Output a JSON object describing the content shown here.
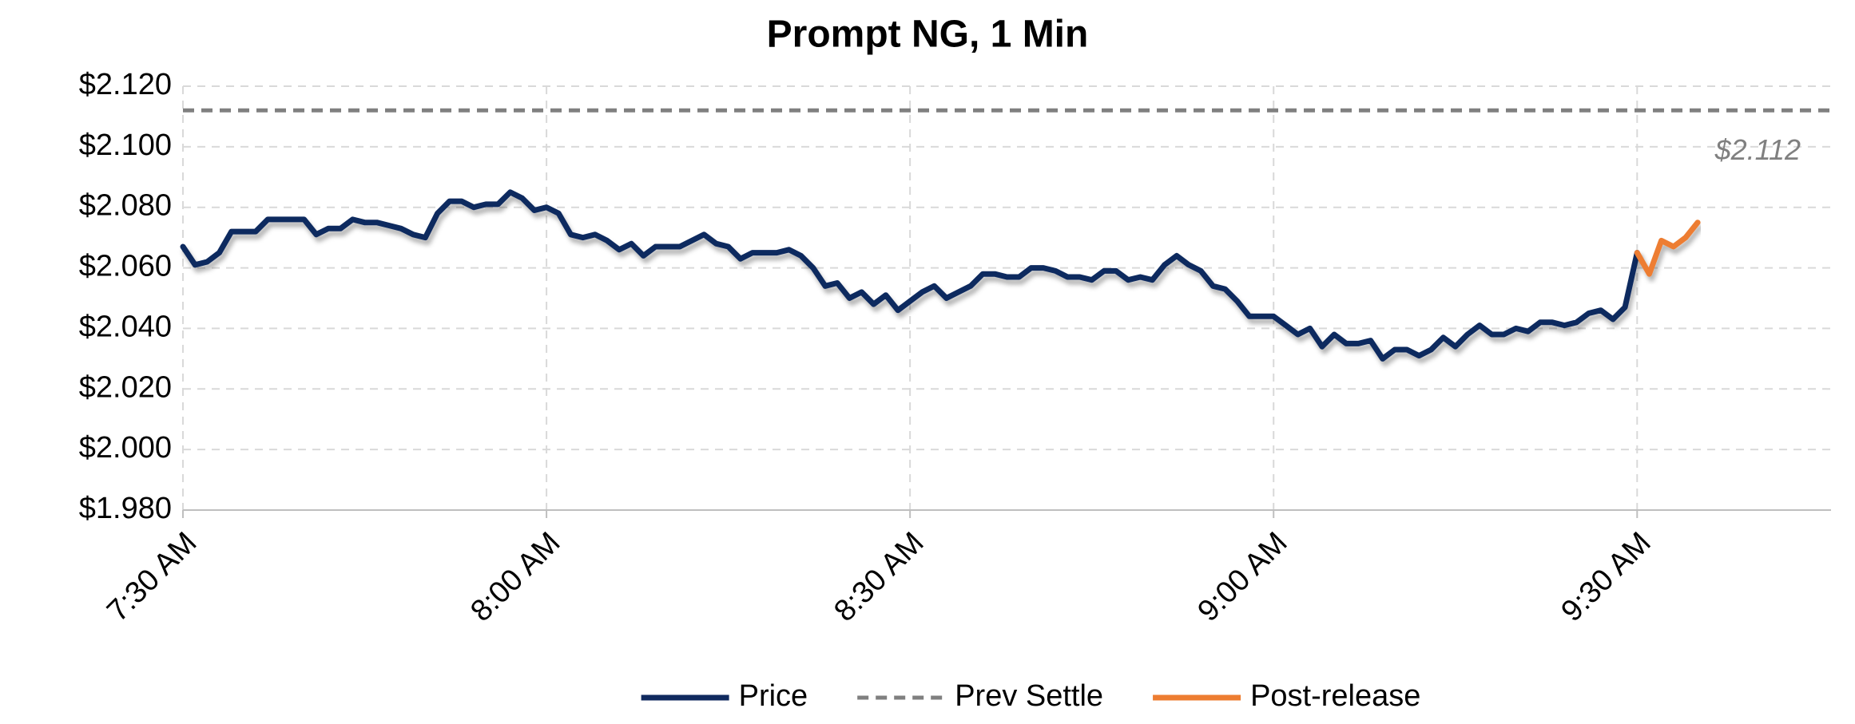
{
  "chart_data": {
    "type": "line",
    "title": "Prompt NG, 1 Min",
    "xlim": [
      450,
      586
    ],
    "xticks": [
      {
        "value": 450,
        "label": "7:30 AM"
      },
      {
        "value": 480,
        "label": "8:00 AM"
      },
      {
        "value": 510,
        "label": "8:30 AM"
      },
      {
        "value": 540,
        "label": "9:00 AM"
      },
      {
        "value": 570,
        "label": "9:30 AM"
      }
    ],
    "ylim": [
      1.98,
      2.12
    ],
    "yticks": [
      {
        "value": 1.98,
        "label": "$1.980"
      },
      {
        "value": 2.0,
        "label": "$2.000"
      },
      {
        "value": 2.02,
        "label": "$2.020"
      },
      {
        "value": 2.04,
        "label": "$2.040"
      },
      {
        "value": 2.06,
        "label": "$2.060"
      },
      {
        "value": 2.08,
        "label": "$2.080"
      },
      {
        "value": 2.1,
        "label": "$2.100"
      },
      {
        "value": 2.12,
        "label": "$2.120"
      }
    ],
    "grid": true,
    "legend": "bottom",
    "series": [
      {
        "name": "Price",
        "color": "#102a5f",
        "line_style": "solid",
        "x": [
          450,
          451,
          452,
          453,
          454,
          455,
          456,
          457,
          458,
          459,
          460,
          461,
          462,
          463,
          464,
          465,
          466,
          467,
          468,
          469,
          470,
          471,
          472,
          473,
          474,
          475,
          476,
          477,
          478,
          479,
          480,
          481,
          482,
          483,
          484,
          485,
          486,
          487,
          488,
          489,
          490,
          491,
          492,
          493,
          494,
          495,
          496,
          497,
          498,
          499,
          500,
          501,
          502,
          503,
          504,
          505,
          506,
          507,
          508,
          509,
          510,
          511,
          512,
          513,
          514,
          515,
          516,
          517,
          518,
          519,
          520,
          521,
          522,
          523,
          524,
          525,
          526,
          527,
          528,
          529,
          530,
          531,
          532,
          533,
          534,
          535,
          536,
          537,
          538,
          539,
          540,
          541,
          542,
          543,
          544,
          545,
          546,
          547,
          548,
          549,
          550,
          551,
          552,
          553,
          554,
          555,
          556,
          557,
          558,
          559,
          560,
          561,
          562,
          563,
          564,
          565,
          566,
          567,
          568,
          569,
          570
        ],
        "values": [
          2.067,
          2.061,
          2.062,
          2.065,
          2.072,
          2.072,
          2.072,
          2.076,
          2.076,
          2.076,
          2.076,
          2.071,
          2.073,
          2.073,
          2.076,
          2.075,
          2.075,
          2.074,
          2.073,
          2.071,
          2.07,
          2.078,
          2.082,
          2.082,
          2.08,
          2.081,
          2.081,
          2.085,
          2.083,
          2.079,
          2.08,
          2.078,
          2.071,
          2.07,
          2.071,
          2.069,
          2.066,
          2.068,
          2.064,
          2.067,
          2.067,
          2.067,
          2.069,
          2.071,
          2.068,
          2.067,
          2.063,
          2.065,
          2.065,
          2.065,
          2.066,
          2.064,
          2.06,
          2.054,
          2.055,
          2.05,
          2.052,
          2.048,
          2.051,
          2.046,
          2.049,
          2.052,
          2.054,
          2.05,
          2.052,
          2.054,
          2.058,
          2.058,
          2.057,
          2.057,
          2.06,
          2.06,
          2.059,
          2.057,
          2.057,
          2.056,
          2.059,
          2.059,
          2.056,
          2.057,
          2.056,
          2.061,
          2.064,
          2.061,
          2.059,
          2.054,
          2.053,
          2.049,
          2.044,
          2.044,
          2.044,
          2.041,
          2.038,
          2.04,
          2.034,
          2.038,
          2.035,
          2.035,
          2.036,
          2.03,
          2.033,
          2.033,
          2.031,
          2.033,
          2.037,
          2.034,
          2.038,
          2.041,
          2.038,
          2.038,
          2.04,
          2.039,
          2.042,
          2.042,
          2.041,
          2.042,
          2.045,
          2.046,
          2.043,
          2.047,
          2.065
        ]
      },
      {
        "name": "Prev Settle",
        "color": "#808080",
        "line_style": "dashed",
        "x": [
          450,
          586
        ],
        "values": [
          2.112,
          2.112
        ]
      },
      {
        "name": "Post-release",
        "color": "#ed7d31",
        "line_style": "solid",
        "x": [
          570,
          571,
          572,
          573,
          574,
          575
        ],
        "values": [
          2.065,
          2.058,
          2.069,
          2.067,
          2.07,
          2.075
        ]
      }
    ],
    "annotations": [
      {
        "text": "$2.112",
        "y": 2.112
      }
    ]
  }
}
